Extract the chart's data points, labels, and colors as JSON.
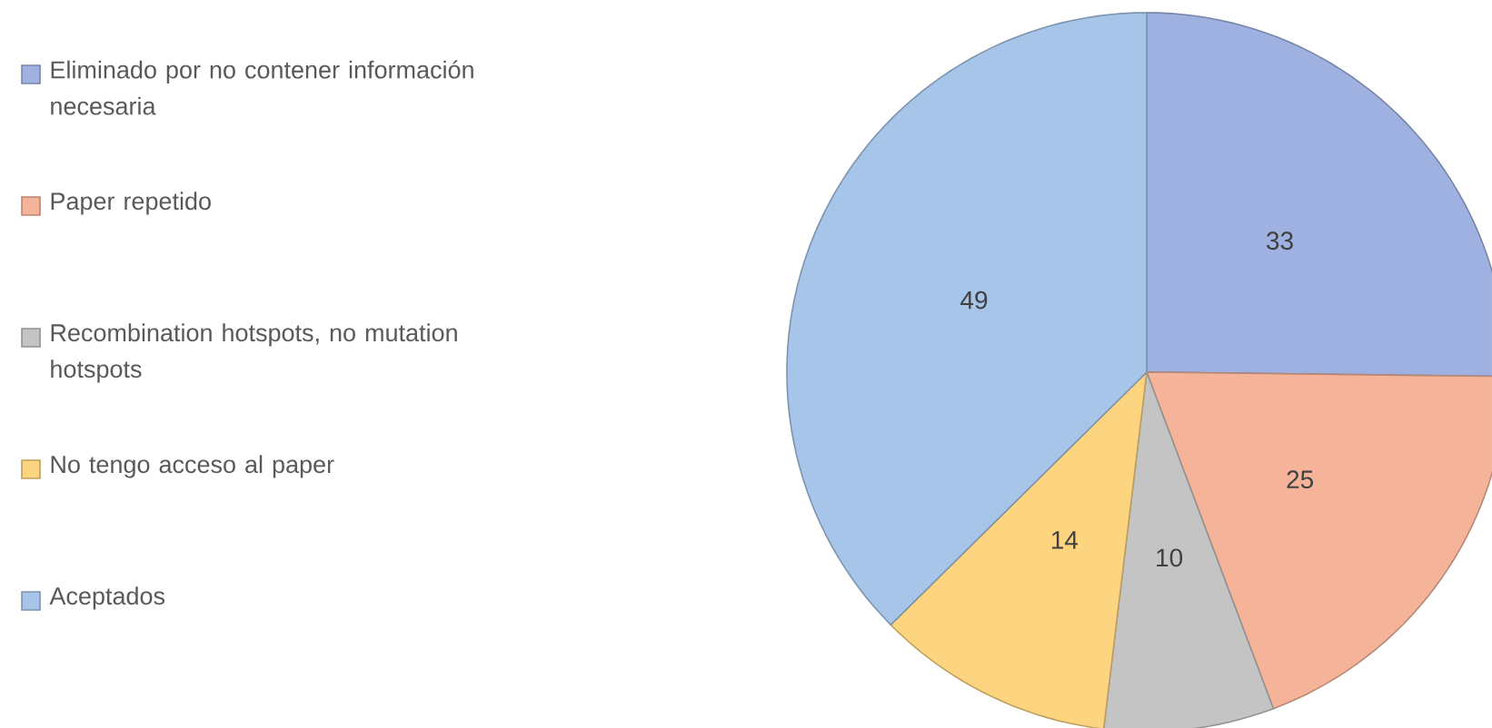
{
  "chart_data": {
    "type": "pie",
    "categories": [
      "Eliminado por no contener información necesaria",
      "Paper repetido",
      "Recombination hotspots, no mutation hotspots",
      "No tengo acceso al paper",
      "Aceptados"
    ],
    "values": [
      33,
      25,
      10,
      14,
      49
    ],
    "colors": [
      "#9fb1e0",
      "#f5b49a",
      "#c4c4c4",
      "#fdd47f",
      "#a7c5e8"
    ],
    "data_labels": true,
    "legend": "left"
  }
}
